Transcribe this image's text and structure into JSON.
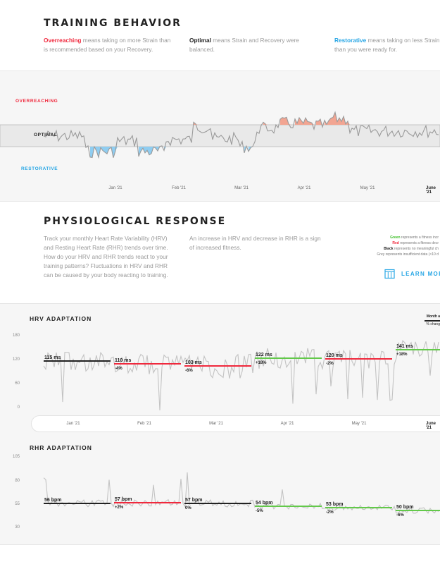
{
  "training": {
    "title": "TRAINING BEHAVIOR",
    "overreaching_word": "Overreaching",
    "overreaching_text": " means taking on more Strain than is recommended based on your Recovery.",
    "optimal_word": "Optimal",
    "optimal_text": " means Strain and Recovery were balanced.",
    "restorative_word": "Restorative",
    "restorative_text": " means taking on less Strain than you were ready for.",
    "zone_overreaching": "OVERREACHING",
    "zone_optimal": "OPTIMAL",
    "zone_restorative": "RESTORATIVE",
    "months": [
      "Jan '21",
      "Feb '21",
      "Mar '21",
      "Apr '21",
      "May '21",
      "June '21"
    ]
  },
  "physio": {
    "title": "PHYSIOLOGICAL RESPONSE",
    "text1": "Track your monthly Heart Rate Variability (HRV) and Resting Heart Rate (RHR) trends over time. How do your HRV and RHR trends react to your training patterns? Fluctuations in HRV and RHR can be caused by your body reacting to training.",
    "text2": "An increase in HRV and decrease in RHR is a sign of increased fitness.",
    "legend_green_word": "Green",
    "legend_green": " represents a fitness incr",
    "legend_red_word": "Red",
    "legend_red": " represents a fitness decr",
    "legend_black_word": "Black",
    "legend_black": " represents no meaningful ch",
    "legend_grey": "Grey represents insufficient data (<10 d",
    "learn_more": "LEARN MOR",
    "colors": {
      "green": "#63c94a",
      "red": "#f0293d",
      "black": "#222222",
      "blue": "#27a6e5"
    }
  },
  "hrv": {
    "title": "HRV ADAPTATION",
    "corner_label_1": "Month a",
    "corner_label_2": "% chang",
    "yticks": [
      "180",
      "120",
      "60",
      "0"
    ],
    "months": [
      "Jan '21",
      "Feb '21",
      "Mar '21",
      "Apr '21",
      "May '21",
      "June '21"
    ],
    "segments": [
      {
        "value": "115 ms",
        "change": "",
        "color": "black"
      },
      {
        "value": "110 ms",
        "change": "-4%",
        "color": "red"
      },
      {
        "value": "103 ms",
        "change": "-6%",
        "color": "red"
      },
      {
        "value": "122 ms",
        "change": "+18%",
        "color": "green"
      },
      {
        "value": "120 ms",
        "change": "-2%",
        "color": "red"
      },
      {
        "value": "141 ms",
        "change": "+18%",
        "color": "green"
      }
    ]
  },
  "rhr": {
    "title": "RHR ADAPTATION",
    "yticks": [
      "105",
      "80",
      "55",
      "30"
    ],
    "segments": [
      {
        "value": "56 bpm",
        "change": "",
        "color": "black"
      },
      {
        "value": "57 bpm",
        "change": "+2%",
        "color": "red"
      },
      {
        "value": "57 bpm",
        "change": "0%",
        "color": "black"
      },
      {
        "value": "54 bpm",
        "change": "-5%",
        "color": "green"
      },
      {
        "value": "53 bpm",
        "change": "-2%",
        "color": "green"
      },
      {
        "value": "50 bpm",
        "change": "-6%",
        "color": "green"
      }
    ]
  }
}
